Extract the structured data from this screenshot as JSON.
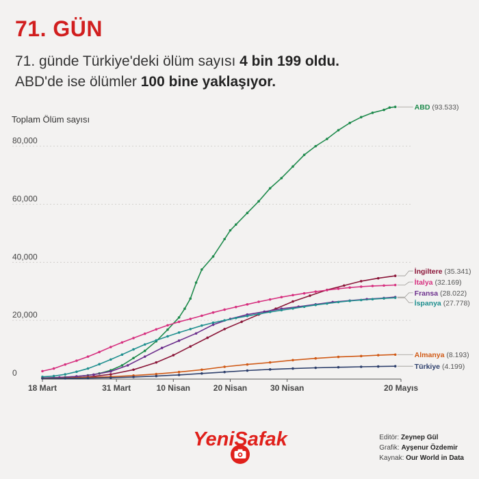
{
  "header": {
    "day_label": "71. GÜN",
    "line1_pre": "71. günde Türkiye'deki ölüm sayısı ",
    "line1_bold": "4 bin 199 oldu.",
    "line2_pre": "ABD'de ise ölümler ",
    "line2_bold": "100 bine yaklaşıyor."
  },
  "chart_data": {
    "type": "line",
    "ylabel": "Toplam Ölüm sayısı",
    "ylim": [
      0,
      95000
    ],
    "yticks": [
      0,
      20000,
      40000,
      60000,
      80000
    ],
    "ytick_labels": [
      "0",
      "20,000",
      "40,000",
      "60,000",
      "80,000"
    ],
    "xlim": [
      0,
      63
    ],
    "xticks": [
      0,
      13,
      23,
      33,
      43,
      63
    ],
    "xtick_labels": [
      "18 Mart",
      "31 Mart",
      "10 Nisan",
      "20 Nisan",
      "30 Nisan",
      "20 Mayıs"
    ],
    "grid": "horizontal",
    "series": [
      {
        "name": "ABD",
        "value_label": "(93.533)",
        "color": "#1e8a4c",
        "label_color": "#1e8a4c",
        "points": [
          [
            0,
            150
          ],
          [
            2,
            260
          ],
          [
            4,
            400
          ],
          [
            6,
            700
          ],
          [
            8,
            1050
          ],
          [
            10,
            1700
          ],
          [
            12,
            2800
          ],
          [
            14,
            4500
          ],
          [
            16,
            7000
          ],
          [
            18,
            9500
          ],
          [
            20,
            12800
          ],
          [
            22,
            16800
          ],
          [
            24,
            21000
          ],
          [
            25,
            24000
          ],
          [
            26,
            27500
          ],
          [
            27,
            33000
          ],
          [
            28,
            37500
          ],
          [
            30,
            42000
          ],
          [
            32,
            48000
          ],
          [
            33,
            51000
          ],
          [
            34,
            53000
          ],
          [
            36,
            57000
          ],
          [
            38,
            61000
          ],
          [
            40,
            65500
          ],
          [
            42,
            69000
          ],
          [
            44,
            73000
          ],
          [
            46,
            77000
          ],
          [
            48,
            80000
          ],
          [
            50,
            82500
          ],
          [
            52,
            85500
          ],
          [
            54,
            88000
          ],
          [
            56,
            90000
          ],
          [
            58,
            91500
          ],
          [
            60,
            92500
          ],
          [
            61,
            93300
          ],
          [
            62,
            93533
          ]
        ]
      },
      {
        "name": "İngiltere",
        "value_label": "(35.341)",
        "color": "#8a1538",
        "label_color": "#8a1538",
        "points": [
          [
            0,
            50
          ],
          [
            4,
            150
          ],
          [
            8,
            500
          ],
          [
            12,
            1400
          ],
          [
            16,
            3000
          ],
          [
            20,
            5500
          ],
          [
            23,
            8000
          ],
          [
            26,
            11000
          ],
          [
            29,
            14000
          ],
          [
            32,
            17000
          ],
          [
            35,
            19500
          ],
          [
            38,
            22000
          ],
          [
            41,
            24000
          ],
          [
            44,
            26500
          ],
          [
            47,
            28500
          ],
          [
            50,
            30500
          ],
          [
            53,
            32000
          ],
          [
            56,
            33500
          ],
          [
            59,
            34500
          ],
          [
            62,
            35341
          ]
        ]
      },
      {
        "name": "İtalya",
        "value_label": "(32.169)",
        "color": "#d6307f",
        "label_color": "#d6307f",
        "points": [
          [
            0,
            2500
          ],
          [
            2,
            3400
          ],
          [
            4,
            4800
          ],
          [
            6,
            6100
          ],
          [
            8,
            7500
          ],
          [
            10,
            9100
          ],
          [
            12,
            10800
          ],
          [
            14,
            12400
          ],
          [
            16,
            13900
          ],
          [
            18,
            15400
          ],
          [
            20,
            16900
          ],
          [
            22,
            18300
          ],
          [
            24,
            19500
          ],
          [
            26,
            20500
          ],
          [
            28,
            21600
          ],
          [
            30,
            22700
          ],
          [
            32,
            23700
          ],
          [
            34,
            24600
          ],
          [
            36,
            25500
          ],
          [
            38,
            26400
          ],
          [
            40,
            27200
          ],
          [
            42,
            28000
          ],
          [
            44,
            28700
          ],
          [
            46,
            29300
          ],
          [
            48,
            29900
          ],
          [
            50,
            30400
          ],
          [
            52,
            30900
          ],
          [
            54,
            31300
          ],
          [
            56,
            31600
          ],
          [
            58,
            31850
          ],
          [
            60,
            32000
          ],
          [
            62,
            32169
          ]
        ]
      },
      {
        "name": "Fransa",
        "value_label": "(28.022)",
        "color": "#6b2e8c",
        "label_color": "#6b2e8c",
        "points": [
          [
            0,
            150
          ],
          [
            3,
            350
          ],
          [
            6,
            700
          ],
          [
            9,
            1300
          ],
          [
            12,
            2400
          ],
          [
            15,
            4500
          ],
          [
            18,
            7500
          ],
          [
            21,
            10500
          ],
          [
            24,
            13000
          ],
          [
            27,
            15500
          ],
          [
            30,
            18500
          ],
          [
            33,
            20500
          ],
          [
            36,
            22000
          ],
          [
            39,
            23000
          ],
          [
            42,
            24000
          ],
          [
            45,
            24700
          ],
          [
            48,
            25500
          ],
          [
            51,
            26300
          ],
          [
            54,
            26800
          ],
          [
            57,
            27300
          ],
          [
            60,
            27700
          ],
          [
            62,
            28022
          ]
        ]
      },
      {
        "name": "İspanya",
        "value_label": "(27.778)",
        "color": "#1f8f8f",
        "label_color": "#1f8f8f",
        "points": [
          [
            0,
            550
          ],
          [
            2,
            800
          ],
          [
            4,
            1400
          ],
          [
            6,
            2300
          ],
          [
            8,
            3400
          ],
          [
            10,
            4900
          ],
          [
            12,
            6500
          ],
          [
            14,
            8200
          ],
          [
            16,
            10000
          ],
          [
            18,
            11700
          ],
          [
            20,
            13100
          ],
          [
            22,
            14500
          ],
          [
            24,
            15800
          ],
          [
            26,
            17000
          ],
          [
            28,
            18200
          ],
          [
            30,
            19200
          ],
          [
            32,
            20000
          ],
          [
            34,
            20800
          ],
          [
            36,
            21500
          ],
          [
            38,
            22200
          ],
          [
            40,
            22900
          ],
          [
            42,
            23500
          ],
          [
            44,
            24100
          ],
          [
            46,
            24700
          ],
          [
            48,
            25300
          ],
          [
            50,
            25800
          ],
          [
            52,
            26300
          ],
          [
            54,
            26700
          ],
          [
            56,
            27000
          ],
          [
            58,
            27300
          ],
          [
            60,
            27550
          ],
          [
            62,
            27778
          ]
        ]
      },
      {
        "name": "Almanya",
        "value_label": "(8.193)",
        "color": "#d05a16",
        "label_color": "#d05a16",
        "points": [
          [
            0,
            30
          ],
          [
            4,
            100
          ],
          [
            8,
            300
          ],
          [
            12,
            600
          ],
          [
            16,
            1000
          ],
          [
            20,
            1500
          ],
          [
            24,
            2200
          ],
          [
            28,
            3000
          ],
          [
            32,
            4000
          ],
          [
            36,
            4800
          ],
          [
            40,
            5500
          ],
          [
            44,
            6300
          ],
          [
            48,
            6900
          ],
          [
            52,
            7400
          ],
          [
            56,
            7700
          ],
          [
            59,
            8000
          ],
          [
            62,
            8193
          ]
        ]
      },
      {
        "name": "Türkiye",
        "value_label": "(4.199)",
        "color": "#2d3f6b",
        "label_color": "#2d3f6b",
        "points": [
          [
            0,
            0
          ],
          [
            4,
            30
          ],
          [
            8,
            100
          ],
          [
            12,
            250
          ],
          [
            16,
            500
          ],
          [
            20,
            800
          ],
          [
            24,
            1200
          ],
          [
            28,
            1700
          ],
          [
            32,
            2200
          ],
          [
            36,
            2700
          ],
          [
            40,
            3100
          ],
          [
            44,
            3400
          ],
          [
            48,
            3650
          ],
          [
            52,
            3850
          ],
          [
            56,
            4000
          ],
          [
            59,
            4100
          ],
          [
            62,
            4199
          ]
        ]
      }
    ]
  },
  "credits": {
    "editor_label": "Editör: ",
    "editor_name": "Zeynep Gül",
    "graphic_label": "Grafik: ",
    "graphic_name": "Ayşenur Özdemir",
    "source_label": "Kaynak: ",
    "source_name": "Our World in Data"
  },
  "logo": {
    "text": "YeniSafak",
    "icon": "camera-icon",
    "color": "#e0201b"
  }
}
